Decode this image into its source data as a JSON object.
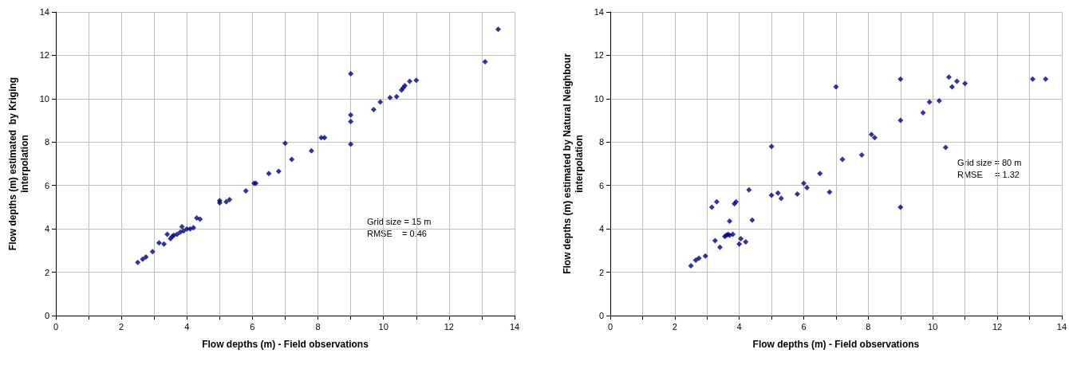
{
  "chart_data": [
    {
      "type": "scatter",
      "xlabel": "Flow depths (m) - Field observations",
      "ylabel": "Flow depths (m) estimated  by Kriging\ninterpolation",
      "marker": "diamond",
      "grid": true,
      "xlim": [
        0,
        14
      ],
      "ylim": [
        0,
        14
      ],
      "xticks": [
        0,
        {
          "value": 1,
          "label": null
        },
        2,
        {
          "value": 3,
          "label": null
        },
        4,
        {
          "value": 5,
          "label": null
        },
        6,
        {
          "value": 7,
          "label": null
        },
        8,
        {
          "value": 9,
          "label": null
        },
        10,
        {
          "value": 11,
          "label": null
        },
        12,
        {
          "value": 13,
          "label": null
        },
        14
      ],
      "yticks": [
        0,
        2,
        4,
        6,
        8,
        10,
        12,
        14
      ],
      "annotations": [
        "Grid size = 15 m",
        "RMSE    = 0.46"
      ],
      "series": [
        {
          "color": "#000080",
          "x": [
            2.5,
            2.65,
            2.75,
            2.95,
            3.15,
            3.3,
            3.4,
            3.5,
            3.55,
            3.6,
            3.7,
            3.8,
            3.85,
            3.9,
            4.0,
            4.1,
            4.2,
            4.3,
            4.4,
            5.0,
            5.0,
            5.2,
            5.3,
            5.8,
            6.05,
            6.1,
            6.5,
            6.8,
            7.0,
            7.2,
            7.8,
            8.1,
            8.2,
            9.0,
            9.0,
            9.0,
            9.0,
            9.7,
            9.9,
            10.2,
            10.4,
            10.55,
            10.6,
            10.65,
            10.8,
            11.0,
            13.1,
            13.5
          ],
          "values": [
            2.45,
            2.6,
            2.7,
            2.95,
            3.35,
            3.3,
            3.75,
            3.55,
            3.65,
            3.7,
            3.75,
            3.85,
            4.1,
            3.9,
            4.0,
            4.0,
            4.05,
            4.5,
            4.45,
            5.2,
            5.3,
            5.25,
            5.35,
            5.75,
            6.1,
            6.1,
            6.55,
            6.65,
            7.95,
            7.2,
            7.6,
            8.2,
            8.2,
            11.15,
            9.25,
            8.95,
            7.9,
            9.5,
            9.85,
            10.05,
            10.1,
            10.4,
            10.5,
            10.6,
            10.8,
            10.85,
            11.7,
            13.2
          ]
        }
      ]
    },
    {
      "type": "scatter",
      "xlabel": "Flow depths (m) - Field observations",
      "ylabel": "Flow depths (m) estimated by Natural Neighbour\ninterpolation",
      "marker": "diamond",
      "grid": true,
      "xlim": [
        0,
        14
      ],
      "ylim": [
        0,
        14
      ],
      "xticks": [
        0,
        {
          "value": 1,
          "label": null
        },
        2,
        {
          "value": 3,
          "label": null
        },
        4,
        {
          "value": 5,
          "label": null
        },
        6,
        {
          "value": 7,
          "label": null
        },
        8,
        {
          "value": 9,
          "label": null
        },
        10,
        {
          "value": 11,
          "label": null
        },
        12,
        {
          "value": 13,
          "label": null
        },
        14
      ],
      "yticks": [
        0,
        2,
        4,
        6,
        8,
        10,
        12,
        14
      ],
      "annotations": [
        "Grid size = 80 m",
        "RMSE     = 1.32"
      ],
      "series": [
        {
          "color": "#000080",
          "x": [
            2.5,
            2.65,
            2.75,
            2.95,
            3.15,
            3.25,
            3.3,
            3.4,
            3.55,
            3.6,
            3.65,
            3.7,
            3.7,
            3.8,
            3.85,
            3.9,
            4.0,
            4.05,
            4.2,
            4.3,
            4.4,
            5.0,
            5.0,
            5.2,
            5.3,
            5.8,
            6.0,
            6.1,
            6.5,
            6.8,
            7.0,
            7.2,
            7.8,
            8.1,
            8.2,
            9.0,
            9.0,
            9.0,
            9.7,
            9.9,
            10.2,
            10.4,
            10.5,
            10.6,
            10.75,
            11.0,
            13.1,
            13.5
          ],
          "values": [
            2.3,
            2.55,
            2.65,
            2.75,
            5.0,
            3.45,
            5.25,
            3.15,
            3.65,
            3.7,
            3.75,
            4.35,
            3.7,
            3.75,
            5.15,
            5.25,
            3.3,
            3.55,
            3.4,
            5.8,
            4.4,
            7.8,
            5.55,
            5.65,
            5.4,
            5.6,
            6.1,
            5.9,
            6.55,
            5.7,
            10.55,
            7.2,
            7.4,
            8.35,
            8.2,
            10.9,
            9.0,
            5.0,
            9.35,
            9.85,
            9.9,
            7.75,
            11.0,
            10.55,
            10.8,
            10.7,
            10.9,
            10.9
          ]
        }
      ]
    }
  ]
}
